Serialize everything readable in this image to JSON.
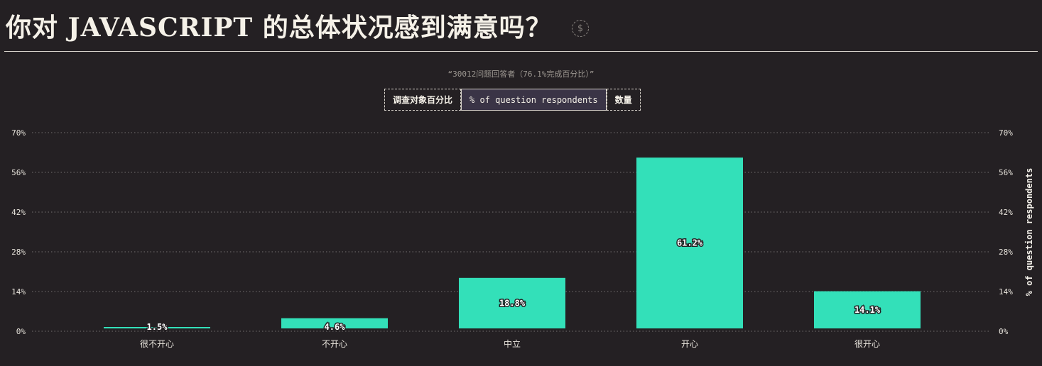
{
  "header": {
    "title": "你对 JAVASCRIPT 的总体状况感到满意吗？",
    "dollar_icon_glyph": "$"
  },
  "subtitle": "“30012问题回答者（76.1%完成百分比）”",
  "toggle": {
    "options": [
      "调查对象百分比",
      "% of question respondents",
      "数量"
    ],
    "active_index": 1
  },
  "colors": {
    "bar": "#33e0b9",
    "background": "#242023"
  },
  "chart_data": {
    "type": "bar",
    "categories": [
      "很不开心",
      "不开心",
      "中立",
      "开心",
      "很开心"
    ],
    "values": [
      1.5,
      4.6,
      18.8,
      61.2,
      14.1
    ],
    "value_labels": [
      "1.5%",
      "4.6%",
      "18.8%",
      "61.2%",
      "14.1%"
    ],
    "ylim": [
      0,
      70
    ],
    "yticks": [
      0,
      14,
      28,
      42,
      56,
      70
    ],
    "ytick_labels": [
      "0%",
      "14%",
      "28%",
      "42%",
      "56%",
      "70%"
    ],
    "ylabel_right": "% of question respondents",
    "grid": true
  }
}
